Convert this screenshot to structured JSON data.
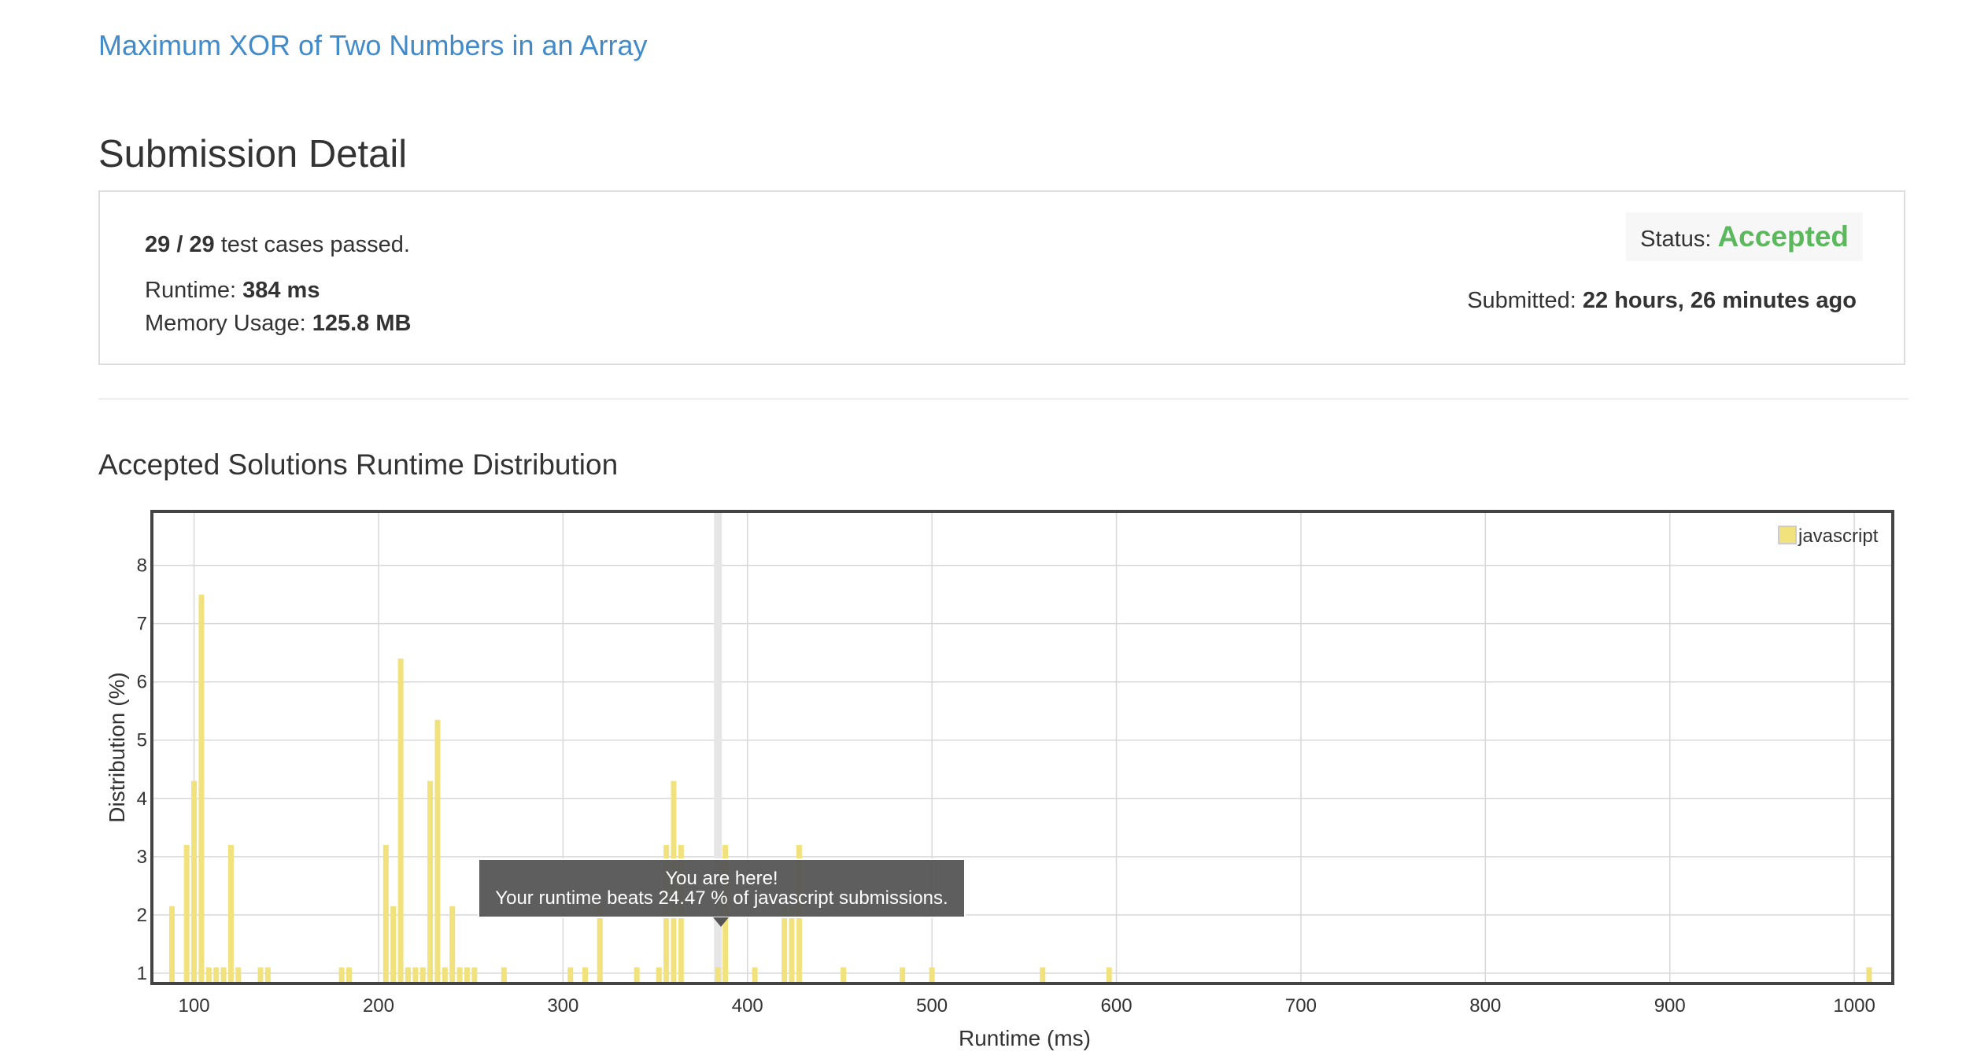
{
  "problem": {
    "title": "Maximum XOR of Two Numbers in an Array"
  },
  "page": {
    "heading": "Submission Detail"
  },
  "detail": {
    "passed_count": "29 / 29",
    "passed_text": " test cases passed.",
    "runtime_label": "Runtime: ",
    "runtime_value": "384 ms",
    "memory_label": "Memory Usage: ",
    "memory_value": "125.8 MB",
    "status_label": "Status: ",
    "status_value": "Accepted",
    "submitted_label": "Submitted: ",
    "submitted_value": "22 hours, 26 minutes ago"
  },
  "section": {
    "title": "Accepted Solutions Runtime Distribution"
  },
  "colors": {
    "bar": "#f2e27d",
    "accent_link": "#428bca",
    "accepted": "#5cb85c",
    "tooltip_bg": "#555555"
  },
  "chart_data": {
    "type": "bar",
    "xlabel": "Runtime (ms)",
    "ylabel": "Distribution (%)",
    "xlim": [
      78,
      1020
    ],
    "ylim": [
      0.85,
      8.9
    ],
    "xticks": [
      100,
      200,
      300,
      400,
      500,
      600,
      700,
      800,
      900,
      1000
    ],
    "yticks": [
      1,
      2,
      3,
      4,
      5,
      6,
      7,
      8
    ],
    "grid": true,
    "legend_position": "top-right",
    "marker_x": 384,
    "series": [
      {
        "name": "javascript",
        "points": [
          [
            88,
            2.15
          ],
          [
            96,
            3.2
          ],
          [
            100,
            4.3
          ],
          [
            104,
            7.5
          ],
          [
            108,
            1.1
          ],
          [
            112,
            1.1
          ],
          [
            116,
            1.1
          ],
          [
            120,
            3.2
          ],
          [
            124,
            1.1
          ],
          [
            136,
            1.1
          ],
          [
            140,
            1.1
          ],
          [
            180,
            1.1
          ],
          [
            184,
            1.1
          ],
          [
            204,
            3.2
          ],
          [
            208,
            2.15
          ],
          [
            212,
            6.4
          ],
          [
            216,
            1.1
          ],
          [
            220,
            1.1
          ],
          [
            224,
            1.1
          ],
          [
            228,
            4.3
          ],
          [
            232,
            5.35
          ],
          [
            236,
            1.1
          ],
          [
            240,
            2.15
          ],
          [
            244,
            1.1
          ],
          [
            248,
            1.1
          ],
          [
            252,
            1.1
          ],
          [
            268,
            1.1
          ],
          [
            304,
            1.1
          ],
          [
            312,
            1.1
          ],
          [
            320,
            2.15
          ],
          [
            340,
            1.1
          ],
          [
            352,
            1.1
          ],
          [
            356,
            3.2
          ],
          [
            360,
            4.3
          ],
          [
            364,
            3.2
          ],
          [
            384,
            1.1
          ],
          [
            388,
            3.2
          ],
          [
            404,
            1.1
          ],
          [
            420,
            2.15
          ],
          [
            424,
            2.15
          ],
          [
            428,
            3.2
          ],
          [
            452,
            1.1
          ],
          [
            484,
            1.1
          ],
          [
            500,
            1.1
          ],
          [
            560,
            1.1
          ],
          [
            596,
            1.1
          ],
          [
            1008,
            1.1
          ]
        ]
      }
    ],
    "tooltip": {
      "line1": "You are here!",
      "line2": "Your runtime beats 24.47 % of javascript submissions."
    }
  }
}
